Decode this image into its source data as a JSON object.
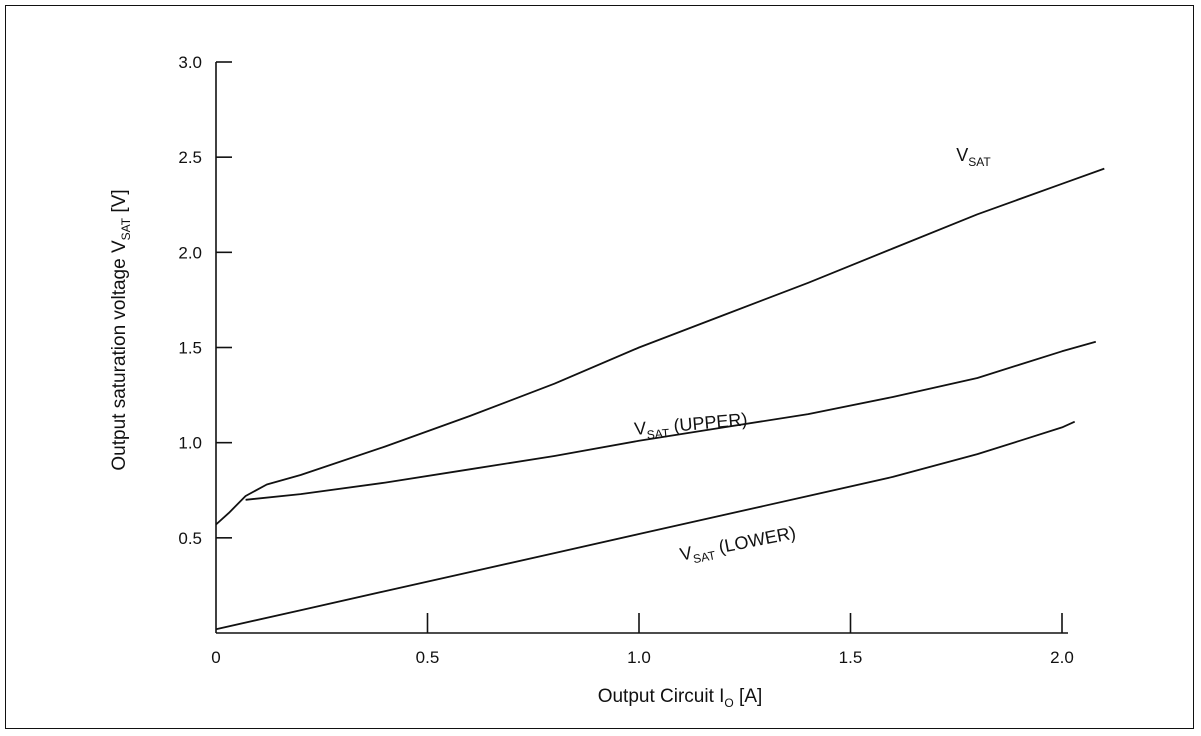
{
  "chart_data": {
    "type": "line",
    "title": "",
    "xlabel": {
      "main": "Output Circuit I",
      "sub": "O",
      "unit": " [A]"
    },
    "ylabel": {
      "main": "Output saturation voltage V",
      "sub": "SAT",
      "unit": " [V]"
    },
    "xlim": [
      0,
      2.1
    ],
    "ylim": [
      0,
      3.0
    ],
    "x_ticks": [
      {
        "value": 0,
        "label": "0"
      },
      {
        "value": 0.5,
        "label": "0.5"
      },
      {
        "value": 1.0,
        "label": "1.0"
      },
      {
        "value": 1.5,
        "label": "1.5"
      },
      {
        "value": 2.0,
        "label": "2.0"
      }
    ],
    "y_ticks": [
      {
        "value": 0.5,
        "label": "0.5"
      },
      {
        "value": 1.0,
        "label": "1.0"
      },
      {
        "value": 1.5,
        "label": "1.5"
      },
      {
        "value": 2.0,
        "label": "2.0"
      },
      {
        "value": 2.5,
        "label": "2.5"
      },
      {
        "value": 3.0,
        "label": "3.0"
      }
    ],
    "grid": false,
    "series": [
      {
        "name": "VSAT",
        "label": {
          "main": "V",
          "sub": "SAT",
          "suffix": ""
        },
        "label_at": {
          "x": 1.75,
          "y": 2.48,
          "angle": 0
        },
        "x": [
          0,
          0.03,
          0.07,
          0.12,
          0.2,
          0.4,
          0.6,
          0.8,
          1.0,
          1.2,
          1.4,
          1.6,
          1.8,
          2.0,
          2.1
        ],
        "y": [
          0.57,
          0.63,
          0.72,
          0.78,
          0.83,
          0.98,
          1.14,
          1.31,
          1.5,
          1.67,
          1.84,
          2.02,
          2.2,
          2.36,
          2.44
        ]
      },
      {
        "name": "VSAT (UPPER)",
        "label": {
          "main": "V",
          "sub": "SAT",
          "suffix": " (UPPER)"
        },
        "label_at": {
          "x": 0.99,
          "y": 1.04,
          "angle": -5
        },
        "x": [
          0.07,
          0.2,
          0.4,
          0.6,
          0.8,
          1.0,
          1.2,
          1.4,
          1.6,
          1.7,
          1.8,
          1.9,
          2.0,
          2.08
        ],
        "y": [
          0.7,
          0.73,
          0.79,
          0.86,
          0.93,
          1.01,
          1.08,
          1.15,
          1.24,
          1.29,
          1.34,
          1.41,
          1.48,
          1.53
        ]
      },
      {
        "name": "VSAT (LOWER)",
        "label": {
          "main": "V",
          "sub": "SAT",
          "suffix": " (LOWER)"
        },
        "label_at": {
          "x": 1.1,
          "y": 0.38,
          "angle": -11
        },
        "x": [
          0,
          0.2,
          0.4,
          0.6,
          0.8,
          1.0,
          1.2,
          1.4,
          1.6,
          1.7,
          1.8,
          1.9,
          2.0,
          2.03
        ],
        "y": [
          0.02,
          0.12,
          0.22,
          0.32,
          0.42,
          0.52,
          0.62,
          0.72,
          0.82,
          0.88,
          0.94,
          1.01,
          1.08,
          1.11
        ]
      }
    ]
  }
}
